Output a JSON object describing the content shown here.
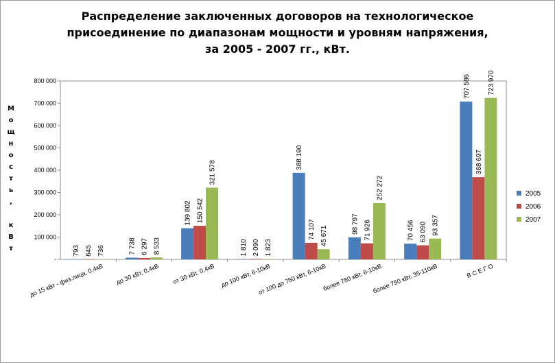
{
  "chart_data": {
    "type": "bar",
    "title": "Распределение заключенных договоров на технологическое\nприсоединение по диапазонам мощности и уровням напряжения,\nза 2005 - 2007 гг., кВт.",
    "ylabel": "Мощность, кВт",
    "ylim": [
      0,
      800000
    ],
    "yticks": [
      0,
      100000,
      200000,
      300000,
      400000,
      500000,
      600000,
      700000,
      800000
    ],
    "ytick_labels": [
      "-",
      "100 000",
      "200 000",
      "300 000",
      "400 000",
      "500 000",
      "600 000",
      "700 000",
      "800 000"
    ],
    "categories": [
      "до 15 кВт - физ.лица, 0,4кВ",
      "до 30 кВт, 0,4кВ",
      "от 30 кВт, 0,4кВ",
      "до 100 кВт, 6-10кВ",
      "от 100 до 750 кВт, 6-10кВ",
      "более 750 кВт, 6-10кВ",
      "более 750 кВт, 35-110кВ",
      "В С Е Г О"
    ],
    "series": [
      {
        "name": "2005",
        "color": "#4a7ebb",
        "values": [
          793,
          7738,
          139802,
          1810,
          388190,
          98797,
          70456,
          707586
        ],
        "labels": [
          "793",
          "7 738",
          "139 802",
          "1 810",
          "388 190",
          "98 797",
          "70 456",
          "707 586"
        ]
      },
      {
        "name": "2006",
        "color": "#be4b48",
        "values": [
          645,
          6297,
          150542,
          2090,
          74107,
          71926,
          63090,
          368697
        ],
        "labels": [
          "645",
          "6 297",
          "150 542",
          "2 090",
          "74 107",
          "71 926",
          "63 090",
          "368 697"
        ]
      },
      {
        "name": "2007",
        "color": "#98b954",
        "values": [
          736,
          8533,
          321578,
          1823,
          45671,
          252272,
          93357,
          723970
        ],
        "labels": [
          "736",
          "8 533",
          "321 578",
          "1 823",
          "45 671",
          "252 272",
          "93 357",
          "723 970"
        ]
      }
    ],
    "legend_position": "right",
    "grid": false
  }
}
